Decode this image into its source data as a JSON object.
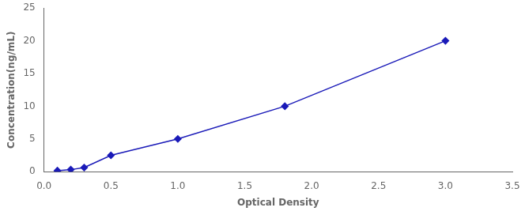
{
  "chart_data": {
    "type": "line",
    "x": [
      0.1,
      0.2,
      0.3,
      0.5,
      1.0,
      1.8,
      3.0
    ],
    "values": [
      0.156,
      0.312,
      0.625,
      2.5,
      5.0,
      10.0,
      20.0
    ],
    "color": "#1a1ab8",
    "marker": "diamond",
    "xlabel": "Optical Density",
    "ylabel": "Concentration(ng/mL)",
    "xlim": [
      0,
      3.5
    ],
    "ylim": [
      0,
      25
    ],
    "xticks": [
      {
        "value": 0,
        "label": "0.0"
      },
      0.5,
      {
        "value": 1,
        "label": "1.0"
      },
      1.5,
      {
        "value": 2,
        "label": "2.0"
      },
      2.5,
      {
        "value": 3,
        "label": "3.0"
      },
      3.5
    ],
    "yticks": [
      0,
      5,
      10,
      15,
      20,
      25
    ],
    "grid": false
  }
}
